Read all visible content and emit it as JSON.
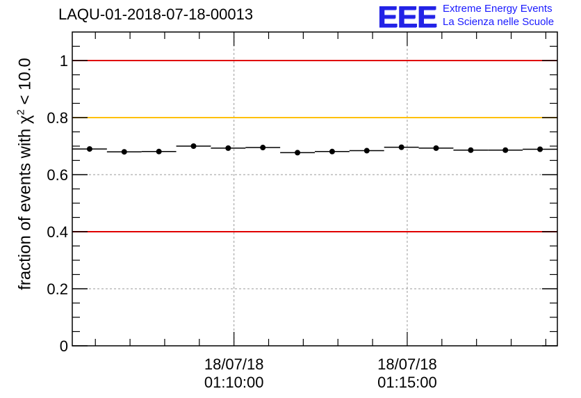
{
  "chart_data": {
    "type": "scatter",
    "title": "LAQU-01-2018-07-18-00013",
    "ylabel_main": "fraction of events with χ",
    "ylabel_sup": "2",
    "ylabel_tail": " < 10.0",
    "ylim": [
      0,
      1.1
    ],
    "y_ticks": [
      0,
      0.2,
      0.4,
      0.6,
      0.8,
      1
    ],
    "y_tick_labels": [
      "0",
      "0.2",
      "0.4",
      "0.6",
      "0.8",
      "1"
    ],
    "x_tick_labels": [
      {
        "date": "18/07/18",
        "time": "01:10:00"
      },
      {
        "date": "18/07/18",
        "time": "01:15:00"
      }
    ],
    "x_range_min": [
      "01:05:20",
      "01:19:20"
    ],
    "x_tick_times_min": [
      10,
      15
    ],
    "bin_width_min": 1,
    "points": [
      {
        "x": "01:05:50",
        "y": 0.69
      },
      {
        "x": "01:06:50",
        "y": 0.68
      },
      {
        "x": "01:07:50",
        "y": 0.681
      },
      {
        "x": "01:08:50",
        "y": 0.7
      },
      {
        "x": "01:09:50",
        "y": 0.693
      },
      {
        "x": "01:10:50",
        "y": 0.695
      },
      {
        "x": "01:11:50",
        "y": 0.677
      },
      {
        "x": "01:12:50",
        "y": 0.681
      },
      {
        "x": "01:13:50",
        "y": 0.684
      },
      {
        "x": "01:14:50",
        "y": 0.696
      },
      {
        "x": "01:15:50",
        "y": 0.693
      },
      {
        "x": "01:16:50",
        "y": 0.686
      },
      {
        "x": "01:17:50",
        "y": 0.686
      },
      {
        "x": "01:18:50",
        "y": 0.689
      }
    ],
    "reference_lines": [
      {
        "y": 1.0,
        "color": "#e00000"
      },
      {
        "y": 0.8,
        "color": "#ffc000"
      },
      {
        "y": 0.4,
        "color": "#e00000"
      }
    ],
    "grid": true
  },
  "logo": {
    "mark": "EEE",
    "line1": "Extreme Energy Events",
    "line2": "La Scienza nelle Scuole"
  }
}
